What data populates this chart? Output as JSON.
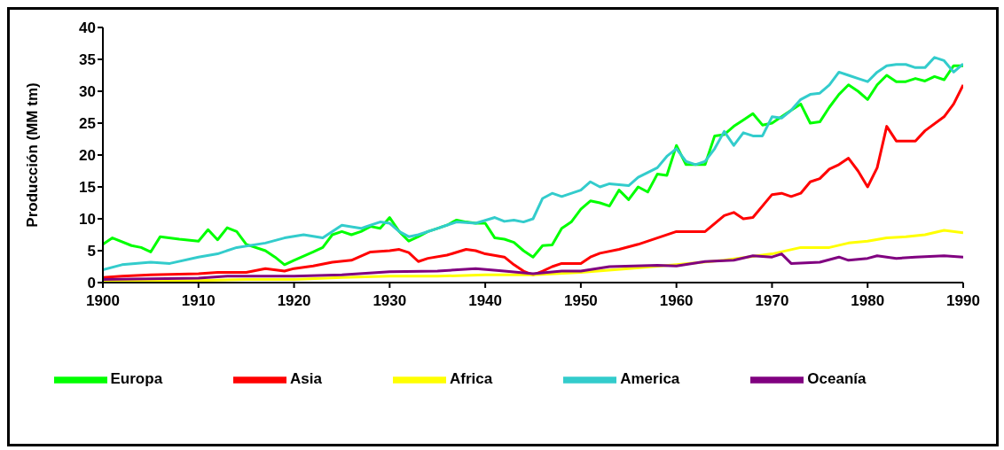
{
  "chart_data": {
    "type": "line",
    "ylabel": "Producción (MM tm)",
    "xlim": [
      1900,
      1990
    ],
    "xticks": [
      1900,
      1910,
      1920,
      1930,
      1940,
      1950,
      1960,
      1970,
      1980,
      1990
    ],
    "ylim": [
      0,
      40
    ],
    "yticks": [
      0,
      5,
      10,
      15,
      20,
      25,
      30,
      35,
      40
    ],
    "grid": false,
    "legend": "bottom",
    "marker": "none",
    "line_style": "solid",
    "series": [
      {
        "name": "Europa",
        "color": "#00ff00",
        "x": [
          1900,
          1901,
          1903,
          1904,
          1905,
          1906,
          1908,
          1910,
          1911,
          1912,
          1913,
          1914,
          1915,
          1917,
          1918,
          1919,
          1920,
          1922,
          1923,
          1924,
          1925,
          1926,
          1927,
          1928,
          1929,
          1930,
          1931,
          1932,
          1933,
          1934,
          1935,
          1936,
          1937,
          1938,
          1939,
          1940,
          1941,
          1942,
          1943,
          1944,
          1945,
          1946,
          1947,
          1948,
          1949,
          1950,
          1951,
          1952,
          1953,
          1954,
          1955,
          1956,
          1957,
          1958,
          1959,
          1960,
          1961,
          1962,
          1963,
          1964,
          1965,
          1966,
          1967,
          1968,
          1969,
          1970,
          1971,
          1972,
          1973,
          1974,
          1975,
          1976,
          1977,
          1978,
          1979,
          1980,
          1981,
          1982,
          1983,
          1984,
          1985,
          1986,
          1987,
          1988,
          1989,
          1990
        ],
        "values": [
          6,
          7,
          5.8,
          5.5,
          4.8,
          7.2,
          6.8,
          6.5,
          8.3,
          6.7,
          8.6,
          8,
          6,
          5,
          4,
          2.8,
          3.5,
          4.8,
          5.5,
          7.5,
          8,
          7.5,
          8,
          8.8,
          8.5,
          10.2,
          8,
          6.5,
          7.2,
          8,
          8.5,
          9,
          9.8,
          9.5,
          9.3,
          9.3,
          7,
          6.8,
          6.3,
          5,
          4,
          5.8,
          5.9,
          8.5,
          9.5,
          11.5,
          12.8,
          12.5,
          12,
          14.5,
          13,
          15,
          14.2,
          17,
          16.8,
          21.5,
          18.5,
          18.5,
          18.5,
          23,
          23.2,
          24.5,
          25.5,
          26.5,
          24.7,
          25,
          26,
          27,
          28,
          25,
          25.2,
          27.5,
          29.5,
          31,
          30,
          28.7,
          31,
          32.5,
          31.5,
          31.5,
          32,
          31.6,
          32.3,
          31.8,
          34,
          34
        ]
      },
      {
        "name": "Asia",
        "color": "#ff0000",
        "x": [
          1900,
          1902,
          1905,
          1910,
          1912,
          1915,
          1917,
          1919,
          1920,
          1922,
          1924,
          1926,
          1928,
          1930,
          1931,
          1932,
          1933,
          1934,
          1936,
          1938,
          1939,
          1940,
          1942,
          1943,
          1944,
          1945,
          1946,
          1947,
          1948,
          1950,
          1951,
          1952,
          1954,
          1956,
          1958,
          1960,
          1963,
          1965,
          1966,
          1967,
          1968,
          1970,
          1971,
          1972,
          1973,
          1974,
          1975,
          1976,
          1977,
          1978,
          1979,
          1980,
          1981,
          1982,
          1983,
          1984,
          1985,
          1986,
          1988,
          1989,
          1990
        ],
        "values": [
          0.8,
          1,
          1.2,
          1.4,
          1.6,
          1.6,
          2.2,
          1.8,
          2.2,
          2.6,
          3.2,
          3.5,
          4.8,
          5,
          5.2,
          4.7,
          3.3,
          3.8,
          4.3,
          5.2,
          5,
          4.5,
          4,
          2.8,
          1.8,
          1.2,
          1.8,
          2.5,
          3,
          3,
          4,
          4.6,
          5.2,
          6,
          7,
          8,
          8,
          10.5,
          11,
          10,
          10.2,
          13.8,
          14,
          13.5,
          14,
          15.8,
          16.3,
          17.8,
          18.5,
          19.5,
          17.5,
          15,
          18,
          24.5,
          22.2,
          22.2,
          22.2,
          23.8,
          26,
          28,
          31
        ]
      },
      {
        "name": "Africa",
        "color": "#ffff00",
        "x": [
          1900,
          1910,
          1915,
          1920,
          1925,
          1930,
          1935,
          1940,
          1945,
          1950,
          1955,
          1960,
          1965,
          1970,
          1973,
          1976,
          1978,
          1980,
          1982,
          1984,
          1986,
          1988,
          1990
        ],
        "values": [
          0.2,
          0.3,
          0.5,
          0.5,
          0.8,
          1,
          1,
          1.2,
          1.2,
          1.6,
          2.2,
          2.8,
          3.5,
          4.5,
          5.5,
          5.5,
          6.2,
          6.5,
          7,
          7.2,
          7.5,
          8.2,
          7.8
        ]
      },
      {
        "name": "America",
        "color": "#33cccc",
        "x": [
          1900,
          1902,
          1905,
          1907,
          1910,
          1912,
          1914,
          1917,
          1919,
          1921,
          1923,
          1925,
          1927,
          1929,
          1930,
          1931,
          1932,
          1933,
          1935,
          1937,
          1939,
          1941,
          1942,
          1943,
          1944,
          1945,
          1946,
          1947,
          1948,
          1950,
          1951,
          1952,
          1953,
          1955,
          1956,
          1958,
          1959,
          1960,
          1961,
          1962,
          1963,
          1964,
          1965,
          1966,
          1967,
          1968,
          1969,
          1970,
          1971,
          1972,
          1973,
          1974,
          1975,
          1976,
          1977,
          1978,
          1979,
          1980,
          1981,
          1982,
          1983,
          1984,
          1985,
          1986,
          1987,
          1988,
          1989,
          1990
        ],
        "values": [
          2,
          2.8,
          3.2,
          3,
          4,
          4.5,
          5.5,
          6.2,
          7,
          7.5,
          7,
          9,
          8.5,
          9.5,
          9.3,
          8,
          7.2,
          7.5,
          8.5,
          9.5,
          9.3,
          10.2,
          9.6,
          9.8,
          9.5,
          10,
          13.2,
          14,
          13.5,
          14.5,
          15.8,
          15,
          15.5,
          15.2,
          16.5,
          18,
          19.8,
          21,
          19,
          18.5,
          19,
          21,
          23.7,
          21.5,
          23.5,
          23,
          23,
          26,
          25.8,
          27,
          28.7,
          29.5,
          29.7,
          31,
          33,
          32.5,
          32,
          31.5,
          33,
          34,
          34.2,
          34.2,
          33.7,
          33.7,
          35.3,
          34.8,
          33,
          34.3
        ]
      },
      {
        "name": "Oceanía",
        "color": "#800080",
        "x": [
          1900,
          1905,
          1910,
          1913,
          1920,
          1925,
          1930,
          1935,
          1939,
          1942,
          1945,
          1948,
          1950,
          1953,
          1958,
          1960,
          1963,
          1966,
          1968,
          1970,
          1971,
          1972,
          1975,
          1977,
          1978,
          1980,
          1981,
          1983,
          1985,
          1988,
          1990
        ],
        "values": [
          0.5,
          0.6,
          0.7,
          1,
          1,
          1.2,
          1.7,
          1.8,
          2.2,
          1.8,
          1.4,
          1.8,
          1.8,
          2.5,
          2.7,
          2.6,
          3.3,
          3.5,
          4.2,
          4,
          4.5,
          3,
          3.2,
          4,
          3.5,
          3.8,
          4.2,
          3.8,
          4,
          4.2,
          4
        ]
      }
    ]
  }
}
